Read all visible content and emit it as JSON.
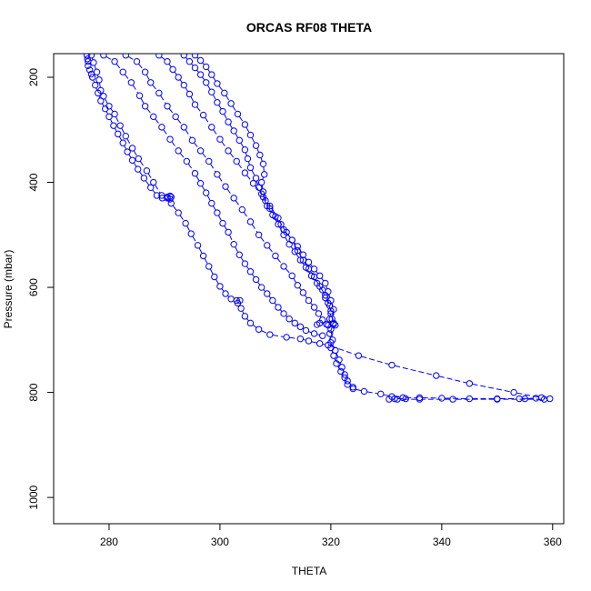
{
  "chart_data": {
    "type": "scatter",
    "title": "ORCAS RF08 THETA",
    "xlabel": "THETA",
    "ylabel": "Pressure (mbar)",
    "xlim": [
      270,
      362
    ],
    "ylim": [
      1050,
      155
    ],
    "y_reversed": true,
    "x_ticks": [
      280,
      300,
      320,
      340,
      360
    ],
    "y_ticks": [
      200,
      400,
      600,
      800,
      1000
    ],
    "grid": false,
    "legend": "none",
    "marker": "open-circle",
    "line_style": "dashed",
    "colors": {
      "series": "#0000ff",
      "axes": "#000000"
    },
    "series": [
      {
        "points": [
          [
            276.0,
            158
          ],
          [
            276.1,
            165
          ],
          [
            276.2,
            170
          ],
          [
            276.2,
            178
          ],
          [
            276.5,
            186
          ],
          [
            276.8,
            194
          ],
          [
            277.0,
            200
          ],
          [
            277.5,
            215
          ],
          [
            278.0,
            230
          ],
          [
            278.5,
            245
          ],
          [
            279.3,
            260
          ],
          [
            280.0,
            275
          ],
          [
            280.8,
            292
          ],
          [
            281.6,
            308
          ],
          [
            282.5,
            325
          ],
          [
            283.3,
            342
          ],
          [
            284.2,
            358
          ],
          [
            285.2,
            375
          ],
          [
            286.3,
            392
          ],
          [
            287.5,
            410
          ],
          [
            288.6,
            425
          ],
          [
            289.6,
            430
          ],
          [
            290.5,
            428
          ],
          [
            291.0,
            426
          ],
          [
            291.2,
            428
          ],
          [
            291.0,
            432
          ],
          [
            290.5,
            430
          ]
        ]
      },
      {
        "points": [
          [
            276.8,
            158
          ],
          [
            277.2,
            172
          ],
          [
            277.8,
            190
          ],
          [
            278.2,
            205
          ],
          [
            278.5,
            225
          ],
          [
            279.0,
            236
          ],
          [
            280.0,
            255
          ],
          [
            281.0,
            270
          ],
          [
            282.0,
            292
          ],
          [
            283.0,
            312
          ],
          [
            284.2,
            335
          ],
          [
            285.3,
            355
          ],
          [
            286.8,
            378
          ],
          [
            288.0,
            400
          ],
          [
            289.5,
            425
          ],
          [
            291.2,
            440
          ],
          [
            292.5,
            458
          ],
          [
            293.8,
            478
          ],
          [
            294.8,
            498
          ],
          [
            296.0,
            520
          ],
          [
            297.0,
            540
          ],
          [
            298.0,
            560
          ],
          [
            299.0,
            580
          ],
          [
            300.0,
            598
          ],
          [
            301.0,
            612
          ],
          [
            302.0,
            622
          ],
          [
            303.0,
            625
          ],
          [
            303.6,
            625
          ],
          [
            303.2,
            630
          ],
          [
            303.8,
            640
          ],
          [
            304.5,
            655
          ],
          [
            305.5,
            668
          ],
          [
            307.0,
            680
          ],
          [
            309.0,
            690
          ],
          [
            312.0,
            695
          ],
          [
            314.5,
            698
          ],
          [
            316.0,
            702
          ],
          [
            318.0,
            707
          ],
          [
            319.5,
            710
          ],
          [
            325.0,
            730
          ],
          [
            331.0,
            748
          ],
          [
            339.0,
            768
          ],
          [
            345.0,
            783
          ],
          [
            353.0,
            800
          ],
          [
            358.0,
            810
          ],
          [
            359.5,
            812
          ],
          [
            358.5,
            813
          ],
          [
            350.0,
            813
          ],
          [
            342.0,
            813
          ],
          [
            336.0,
            813
          ],
          [
            332.0,
            813
          ],
          [
            330.5,
            813
          ],
          [
            331.5,
            812
          ],
          [
            333.5,
            812
          ]
        ]
      },
      {
        "points": [
          [
            279.0,
            158
          ],
          [
            281.0,
            170
          ],
          [
            282.5,
            190
          ],
          [
            284.0,
            210
          ],
          [
            285.5,
            235
          ],
          [
            286.5,
            255
          ],
          [
            288.0,
            275
          ],
          [
            289.5,
            295
          ],
          [
            291.0,
            318
          ],
          [
            292.5,
            340
          ],
          [
            294.0,
            360
          ],
          [
            295.5,
            383
          ],
          [
            296.5,
            402
          ],
          [
            297.5,
            420
          ],
          [
            298.5,
            440
          ],
          [
            299.5,
            458
          ],
          [
            300.5,
            478
          ],
          [
            301.5,
            495
          ],
          [
            302.5,
            518
          ],
          [
            303.5,
            538
          ],
          [
            304.5,
            555
          ],
          [
            305.5,
            570
          ],
          [
            306.5,
            585
          ],
          [
            307.5,
            600
          ],
          [
            308.5,
            612
          ],
          [
            309.5,
            625
          ],
          [
            310.5,
            638
          ],
          [
            311.5,
            650
          ],
          [
            312.5,
            660
          ],
          [
            313.5,
            668
          ],
          [
            314.5,
            675
          ],
          [
            315.5,
            682
          ],
          [
            317.0,
            688
          ],
          [
            318.5,
            692
          ]
        ]
      },
      {
        "points": [
          [
            283.0,
            158
          ],
          [
            285.0,
            170
          ],
          [
            286.5,
            190
          ],
          [
            287.5,
            210
          ],
          [
            289.0,
            230
          ],
          [
            290.5,
            255
          ],
          [
            292.0,
            275
          ],
          [
            293.5,
            295
          ],
          [
            295.0,
            320
          ],
          [
            296.5,
            340
          ],
          [
            298.0,
            360
          ],
          [
            299.5,
            385
          ],
          [
            301.0,
            408
          ],
          [
            302.5,
            430
          ],
          [
            304.0,
            452
          ],
          [
            305.5,
            475
          ],
          [
            307.0,
            500
          ],
          [
            308.5,
            520
          ],
          [
            310.0,
            540
          ],
          [
            311.5,
            560
          ],
          [
            313.0,
            578
          ],
          [
            314.0,
            596
          ],
          [
            315.0,
            610
          ],
          [
            316.0,
            625
          ],
          [
            317.0,
            638
          ],
          [
            317.8,
            650
          ],
          [
            318.5,
            662
          ],
          [
            319.5,
            672
          ],
          [
            320.5,
            670
          ],
          [
            319.2,
            670
          ],
          [
            318.0,
            668
          ],
          [
            317.5,
            671
          ]
        ]
      },
      {
        "points": [
          [
            289.0,
            158
          ],
          [
            290.5,
            170
          ],
          [
            291.5,
            185
          ],
          [
            292.5,
            200
          ],
          [
            293.5,
            215
          ],
          [
            294.5,
            232
          ],
          [
            295.5,
            252
          ],
          [
            297.0,
            272
          ],
          [
            298.5,
            295
          ],
          [
            300.0,
            318
          ],
          [
            301.5,
            340
          ],
          [
            303.0,
            360
          ],
          [
            304.5,
            382
          ],
          [
            306.0,
            402
          ],
          [
            307.5,
            422
          ],
          [
            309.0,
            445
          ],
          [
            310.5,
            468
          ],
          [
            311.5,
            490
          ],
          [
            313.0,
            510
          ],
          [
            314.0,
            530
          ],
          [
            315.0,
            548
          ],
          [
            316.0,
            565
          ],
          [
            317.0,
            580
          ],
          [
            318.0,
            598
          ],
          [
            319.0,
            615
          ],
          [
            319.5,
            630
          ],
          [
            320.0,
            645
          ],
          [
            319.8,
            660
          ],
          [
            320.0,
            680
          ],
          [
            320.3,
            700
          ],
          [
            320.0,
            715
          ],
          [
            320.5,
            730
          ],
          [
            321.0,
            745
          ],
          [
            321.8,
            760
          ],
          [
            322.5,
            772
          ],
          [
            323.0,
            785
          ],
          [
            324.0,
            793
          ],
          [
            326.0,
            798
          ],
          [
            329.0,
            803
          ],
          [
            331.0,
            808
          ],
          [
            333.0,
            810
          ],
          [
            336.0,
            810
          ],
          [
            340.0,
            811
          ],
          [
            345.0,
            812
          ],
          [
            350.0,
            812
          ],
          [
            354.0,
            812
          ],
          [
            357.0,
            811
          ],
          [
            355.0,
            812
          ]
        ]
      },
      {
        "points": [
          [
            293.5,
            158
          ],
          [
            294.5,
            170
          ],
          [
            295.5,
            182
          ],
          [
            296.5,
            195
          ],
          [
            297.5,
            210
          ],
          [
            298.5,
            228
          ],
          [
            299.5,
            248
          ],
          [
            300.5,
            265
          ],
          [
            301.5,
            285
          ],
          [
            302.5,
            302
          ],
          [
            303.5,
            320
          ],
          [
            304.5,
            338
          ],
          [
            305.0,
            355
          ],
          [
            305.5,
            372
          ],
          [
            306.5,
            392
          ],
          [
            307.0,
            410
          ],
          [
            307.8,
            428
          ],
          [
            308.5,
            445
          ],
          [
            309.5,
            462
          ],
          [
            310.5,
            480
          ],
          [
            311.5,
            500
          ],
          [
            312.5,
            518
          ],
          [
            313.5,
            532
          ],
          [
            314.5,
            548
          ],
          [
            315.5,
            562
          ],
          [
            316.5,
            578
          ],
          [
            317.5,
            592
          ],
          [
            318.5,
            605
          ],
          [
            319.0,
            620
          ],
          [
            319.8,
            635
          ],
          [
            320.0,
            650
          ],
          [
            320.5,
            668
          ],
          [
            319.8,
            688
          ],
          [
            320.0,
            705
          ],
          [
            320.8,
            720
          ],
          [
            321.5,
            738
          ],
          [
            322.0,
            752
          ],
          [
            322.5,
            766
          ],
          [
            323.0,
            778
          ],
          [
            324.0,
            790
          ]
        ]
      },
      {
        "points": [
          [
            295.5,
            158
          ],
          [
            296.5,
            168
          ],
          [
            297.5,
            180
          ],
          [
            298.5,
            195
          ],
          [
            299.5,
            212
          ],
          [
            300.8,
            230
          ],
          [
            302.0,
            250
          ],
          [
            303.2,
            270
          ],
          [
            304.5,
            290
          ],
          [
            305.5,
            310
          ],
          [
            306.5,
            330
          ],
          [
            307.2,
            348
          ],
          [
            307.8,
            365
          ],
          [
            308.0,
            385
          ],
          [
            307.5,
            400
          ],
          [
            307.8,
            418
          ],
          [
            308.2,
            435
          ],
          [
            309.0,
            450
          ],
          [
            310.0,
            465
          ],
          [
            311.0,
            480
          ],
          [
            312.0,
            495
          ],
          [
            313.0,
            510
          ],
          [
            314.0,
            522
          ],
          [
            315.0,
            538
          ],
          [
            316.0,
            552
          ],
          [
            317.0,
            565
          ],
          [
            318.0,
            578
          ],
          [
            319.0,
            592
          ],
          [
            319.5,
            608
          ],
          [
            320.0,
            625
          ],
          [
            320.5,
            642
          ],
          [
            320.2,
            660
          ],
          [
            320.8,
            672
          ]
        ]
      }
    ]
  }
}
